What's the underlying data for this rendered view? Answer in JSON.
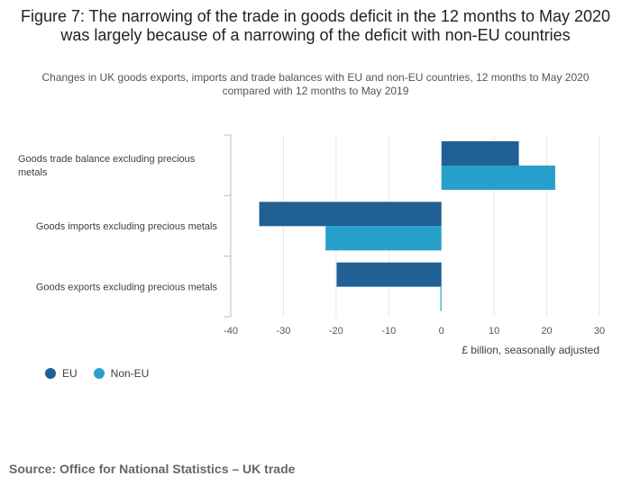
{
  "title": "Figure 7: The narrowing of the trade in goods deficit in the 12 months to May 2020 was largely because of a narrowing of the deficit with non-EU countries",
  "subtitle": "Changes in UK goods exports, imports and trade balances with EU and non-EU countries, 12 months to May 2020 compared with 12 months to May 2019",
  "source": "Source: Office for National Statistics – UK trade",
  "colors": {
    "eu": "#206095",
    "non_eu": "#27a0cc",
    "grid": "#e6e6e6",
    "axis": "#bcbcbc"
  },
  "chart_data": {
    "type": "bar",
    "orientation": "horizontal",
    "categories": [
      "Goods trade balance excluding precious metals",
      "Goods imports excluding precious metals",
      "Goods exports excluding precious metals"
    ],
    "category_lines": [
      [
        "Goods trade balance excluding precious",
        "metals"
      ],
      [
        "Goods imports excluding precious metals"
      ],
      [
        "Goods exports excluding precious metals"
      ]
    ],
    "series": [
      {
        "name": "EU",
        "values": [
          14.7,
          -34.6,
          -19.9
        ]
      },
      {
        "name": "Non-EU",
        "values": [
          21.6,
          -22.0,
          -0.2
        ]
      }
    ],
    "xlim": [
      -40,
      30
    ],
    "xticks": [
      -40,
      -30,
      -20,
      -10,
      0,
      10,
      20,
      30
    ],
    "xlabel": "£ billion, seasonally adjusted",
    "ylabel": "",
    "grid": true,
    "legend_position": "bottom-left"
  }
}
